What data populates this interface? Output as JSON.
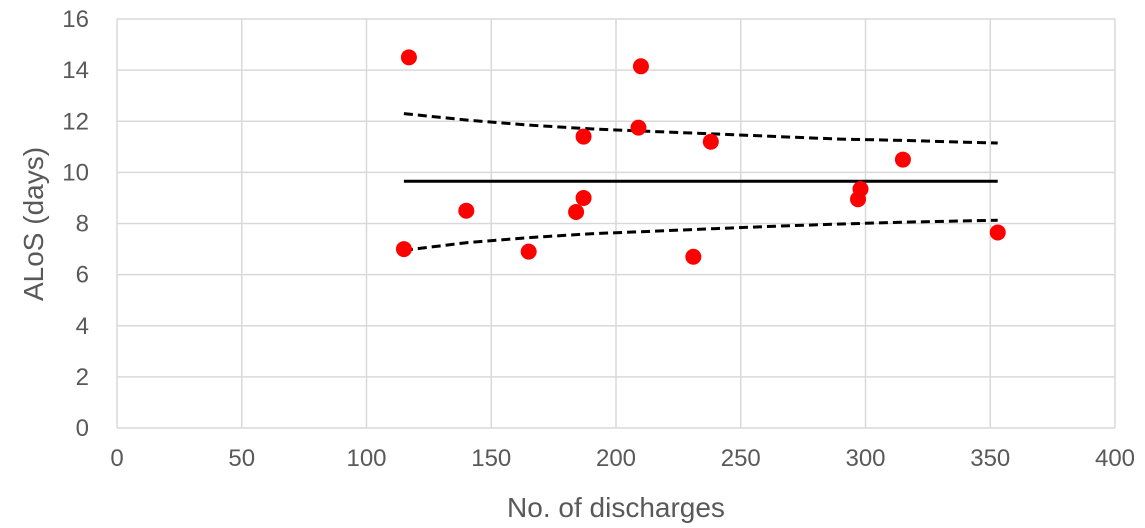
{
  "chart_data": {
    "type": "scatter",
    "title": "",
    "xlabel": "No. of discharges",
    "ylabel": "ALoS (days)",
    "xlim": [
      0,
      400
    ],
    "ylim": [
      0,
      16
    ],
    "x_ticks": [
      "0",
      "50",
      "100",
      "150",
      "200",
      "250",
      "300",
      "350",
      "400"
    ],
    "y_ticks": [
      "0",
      "2",
      "4",
      "6",
      "8",
      "10",
      "12",
      "14",
      "16"
    ],
    "grid": true,
    "legend": "none",
    "points": {
      "color": "#ff0000",
      "x": [
        115,
        117,
        140,
        165,
        184,
        187,
        187,
        209,
        210,
        231,
        238,
        297,
        298,
        315,
        353
      ],
      "y": [
        7.0,
        14.5,
        8.5,
        6.9,
        8.45,
        9.0,
        11.4,
        11.75,
        14.15,
        6.7,
        11.2,
        8.95,
        9.35,
        10.5,
        7.65
      ]
    },
    "mean_line": {
      "color": "#000000",
      "x": [
        115,
        353
      ],
      "y": [
        9.65,
        9.65
      ]
    },
    "upper_limit": {
      "color": "#000000",
      "x": [
        115,
        140,
        165,
        190,
        215,
        240,
        265,
        290,
        315,
        340,
        353
      ],
      "y": [
        12.3,
        12.05,
        11.85,
        11.7,
        11.6,
        11.5,
        11.4,
        11.3,
        11.25,
        11.18,
        11.15
      ]
    },
    "lower_limit": {
      "color": "#000000",
      "x": [
        115,
        140,
        165,
        190,
        215,
        240,
        265,
        290,
        315,
        340,
        353
      ],
      "y": [
        6.95,
        7.25,
        7.45,
        7.6,
        7.7,
        7.8,
        7.9,
        7.98,
        8.05,
        8.1,
        8.13
      ]
    }
  }
}
